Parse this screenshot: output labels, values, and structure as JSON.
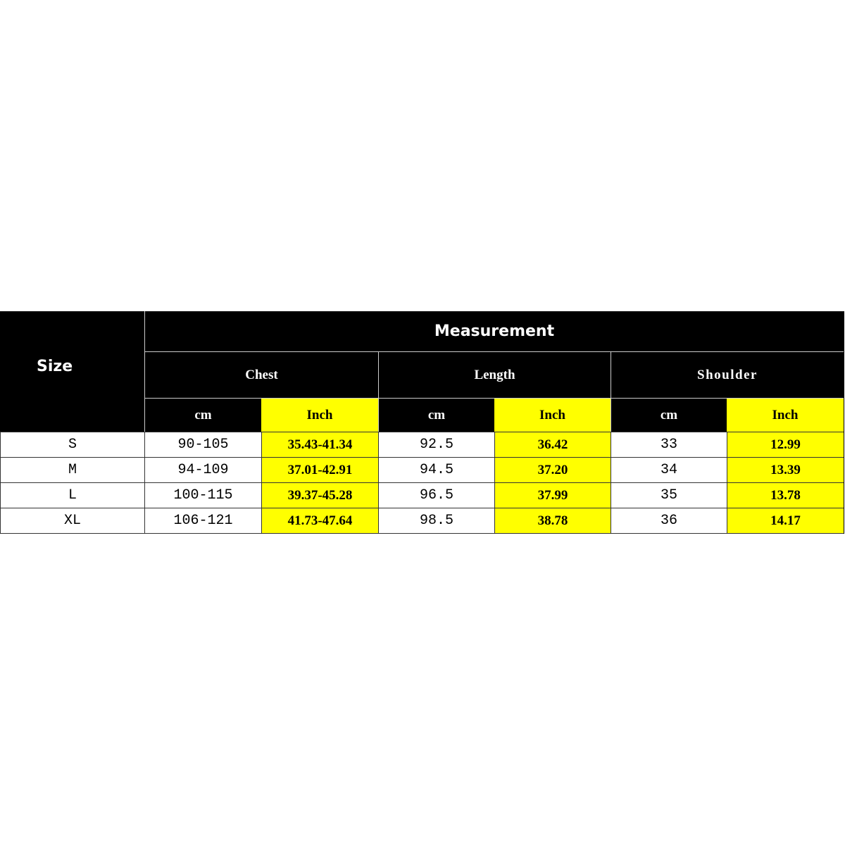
{
  "table": {
    "size_header": "Size",
    "measurement_header": "Measurement",
    "groups": [
      "Chest",
      "Length",
      "Shoulder"
    ],
    "units": [
      "cm",
      "Inch",
      "cm",
      "Inch",
      "cm",
      "Inch"
    ],
    "rows": [
      [
        "S",
        "90-105",
        "35.43-41.34",
        "92.5",
        "36.42",
        "33",
        "12.99"
      ],
      [
        "M",
        "94-109",
        "37.01-42.91",
        "94.5",
        "37.20",
        "34",
        "13.39"
      ],
      [
        "L",
        "100-115",
        "39.37-45.28",
        "96.5",
        "37.99",
        "35",
        "13.78"
      ],
      [
        "XL",
        "106-121",
        "41.73-47.64",
        "98.5",
        "38.78",
        "36",
        "14.17"
      ]
    ],
    "colors": {
      "header_bg": "#000000",
      "inch_highlight": "#ffff00",
      "body_bg": "#ffffff"
    }
  }
}
